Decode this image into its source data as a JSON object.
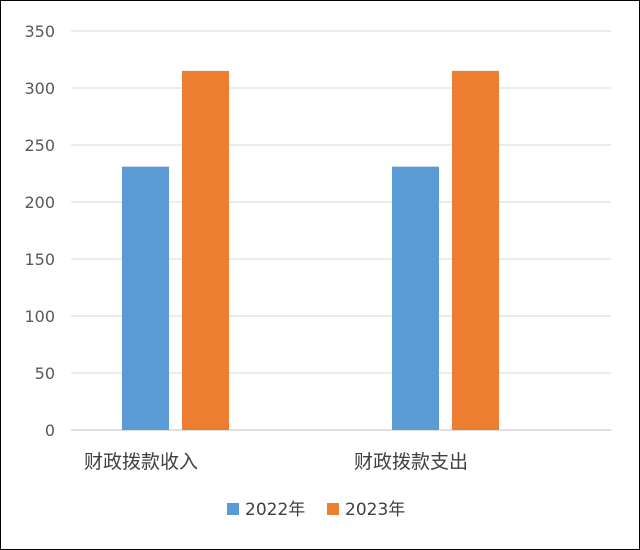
{
  "chart_data": {
    "type": "bar",
    "categories": [
      "财政拨款收入",
      "财政拨款支出"
    ],
    "series": [
      {
        "name": "2022年",
        "values": [
          231,
          231
        ],
        "color": "#5B9BD5"
      },
      {
        "name": "2023年",
        "values": [
          315,
          315
        ],
        "color": "#ED7D31"
      }
    ],
    "ylim": [
      0,
      350
    ],
    "yticks": [
      0,
      50,
      100,
      150,
      200,
      250,
      300,
      350
    ],
    "grid": true,
    "legend": "bottom",
    "title": "",
    "xlabel": "",
    "ylabel": ""
  }
}
